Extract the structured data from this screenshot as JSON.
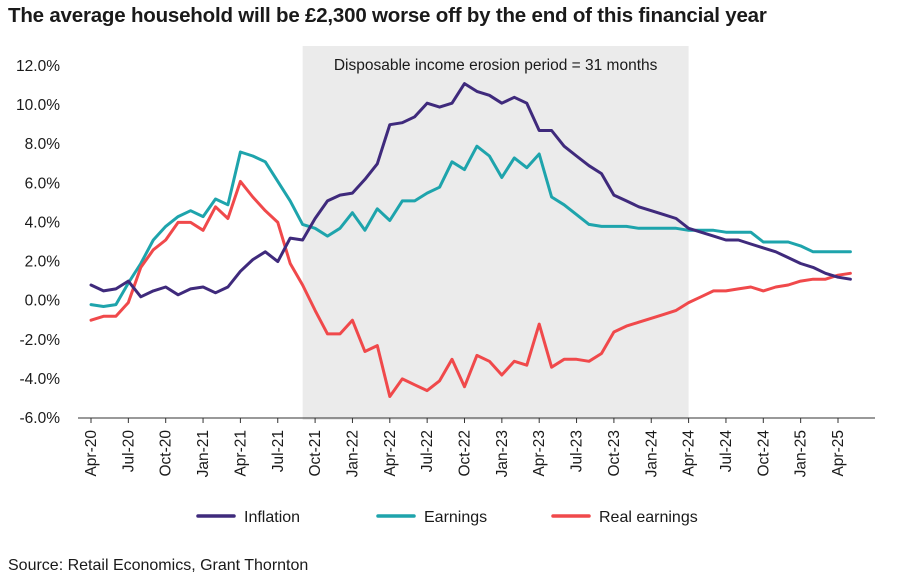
{
  "title": "The average household will be £2,300 worse off by the end of this financial year",
  "source": "Source: Retail Economics, Grant Thornton",
  "colors": {
    "inflation": "#3f2a7c",
    "earnings": "#1ea4ac",
    "real_earnings": "#f0494b",
    "shading": "#ebebeb",
    "axis": "#333333"
  },
  "chart_data": {
    "type": "line",
    "title": "The average household will be £2,300 worse off by the end of this financial year",
    "xlabel": "",
    "ylabel": "",
    "ylim": [
      -6,
      12
    ],
    "yticks": [
      12,
      10,
      8,
      6,
      4,
      2,
      0,
      -2,
      -4,
      -6
    ],
    "ytick_labels": [
      "12.0%",
      "10.0%",
      "8.0%",
      "6.0%",
      "4.0%",
      "2.0%",
      "0.0%",
      "-2.0%",
      "-4.0%",
      "-6.0%"
    ],
    "x_months": [
      "Apr-20",
      "May-20",
      "Jun-20",
      "Jul-20",
      "Aug-20",
      "Sep-20",
      "Oct-20",
      "Nov-20",
      "Dec-20",
      "Jan-21",
      "Feb-21",
      "Mar-21",
      "Apr-21",
      "May-21",
      "Jun-21",
      "Jul-21",
      "Aug-21",
      "Sep-21",
      "Oct-21",
      "Nov-21",
      "Dec-21",
      "Jan-22",
      "Feb-22",
      "Mar-22",
      "Apr-22",
      "May-22",
      "Jun-22",
      "Jul-22",
      "Aug-22",
      "Sep-22",
      "Oct-22",
      "Nov-22",
      "Dec-22",
      "Jan-23",
      "Feb-23",
      "Mar-23",
      "Apr-23",
      "May-23",
      "Jun-23",
      "Jul-23",
      "Aug-23",
      "Sep-23",
      "Oct-23",
      "Nov-23",
      "Dec-23",
      "Jan-24",
      "Feb-24",
      "Mar-24",
      "Apr-24",
      "May-24",
      "Jun-24",
      "Jul-24",
      "Aug-24",
      "Sep-24",
      "Oct-24",
      "Nov-24",
      "Dec-24",
      "Jan-25",
      "Feb-25",
      "Mar-25",
      "Apr-25",
      "May-25"
    ],
    "x_tick_labels": [
      "Apr-20",
      "Jul-20",
      "Oct-20",
      "Jan-21",
      "Apr-21",
      "Jul-21",
      "Oct-21",
      "Jan-22",
      "Apr-22",
      "Jul-22",
      "Oct-22",
      "Jan-23",
      "Apr-23",
      "Jul-23",
      "Oct-23",
      "Jan-24",
      "Apr-24",
      "Jul-24",
      "Oct-24",
      "Jan-25",
      "Apr-25"
    ],
    "shaded_period": {
      "start": "Sep-21",
      "end": "Apr-24",
      "label": "Disposable income erosion period = 31 months"
    },
    "series": [
      {
        "name": "Inflation",
        "key": "inflation",
        "values": [
          0.8,
          0.5,
          0.6,
          1.0,
          0.2,
          0.5,
          0.7,
          0.3,
          0.6,
          0.7,
          0.4,
          0.7,
          1.5,
          2.1,
          2.5,
          2.0,
          3.2,
          3.1,
          4.2,
          5.1,
          5.4,
          5.5,
          6.2,
          7.0,
          9.0,
          9.1,
          9.4,
          10.1,
          9.9,
          10.1,
          11.1,
          10.7,
          10.5,
          10.1,
          10.4,
          10.1,
          8.7,
          8.7,
          7.9,
          7.4,
          6.9,
          6.5,
          5.4,
          5.1,
          4.8,
          4.6,
          4.4,
          4.2,
          3.7,
          3.5,
          3.3,
          3.1,
          3.1,
          2.9,
          2.7,
          2.5,
          2.2,
          1.9,
          1.7,
          1.4,
          1.2,
          1.1
        ]
      },
      {
        "name": "Earnings",
        "key": "earnings",
        "values": [
          -0.2,
          -0.3,
          -0.2,
          0.9,
          1.9,
          3.1,
          3.8,
          4.3,
          4.6,
          4.3,
          5.2,
          4.9,
          7.6,
          7.4,
          7.1,
          6.1,
          5.1,
          3.9,
          3.7,
          3.3,
          3.7,
          4.5,
          3.6,
          4.7,
          4.1,
          5.1,
          5.1,
          5.5,
          5.8,
          7.1,
          6.7,
          7.9,
          7.4,
          6.3,
          7.3,
          6.8,
          7.5,
          5.3,
          4.9,
          4.4,
          3.9,
          3.8,
          3.8,
          3.8,
          3.7,
          3.7,
          3.7,
          3.7,
          3.6,
          3.6,
          3.6,
          3.5,
          3.5,
          3.5,
          3.0,
          3.0,
          3.0,
          2.8,
          2.5,
          2.5,
          2.5,
          2.5
        ]
      },
      {
        "name": "Real earnings",
        "key": "real_earnings",
        "values": [
          -1.0,
          -0.8,
          -0.8,
          -0.1,
          1.7,
          2.6,
          3.1,
          4.0,
          4.0,
          3.6,
          4.8,
          4.2,
          6.1,
          5.3,
          4.6,
          4.0,
          1.9,
          0.8,
          -0.5,
          -1.7,
          -1.7,
          -1.0,
          -2.6,
          -2.3,
          -4.9,
          -4.0,
          -4.3,
          -4.6,
          -4.1,
          -3.0,
          -4.4,
          -2.8,
          -3.1,
          -3.8,
          -3.1,
          -3.3,
          -1.2,
          -3.4,
          -3.0,
          -3.0,
          -3.1,
          -2.7,
          -1.6,
          -1.3,
          -1.1,
          -0.9,
          -0.7,
          -0.5,
          -0.1,
          0.2,
          0.5,
          0.5,
          0.6,
          0.7,
          0.5,
          0.7,
          0.8,
          1.0,
          1.1,
          1.1,
          1.3,
          1.4
        ]
      }
    ],
    "legend": {
      "position": "bottom-center",
      "entries": [
        "Inflation",
        "Earnings",
        "Real earnings"
      ]
    }
  }
}
